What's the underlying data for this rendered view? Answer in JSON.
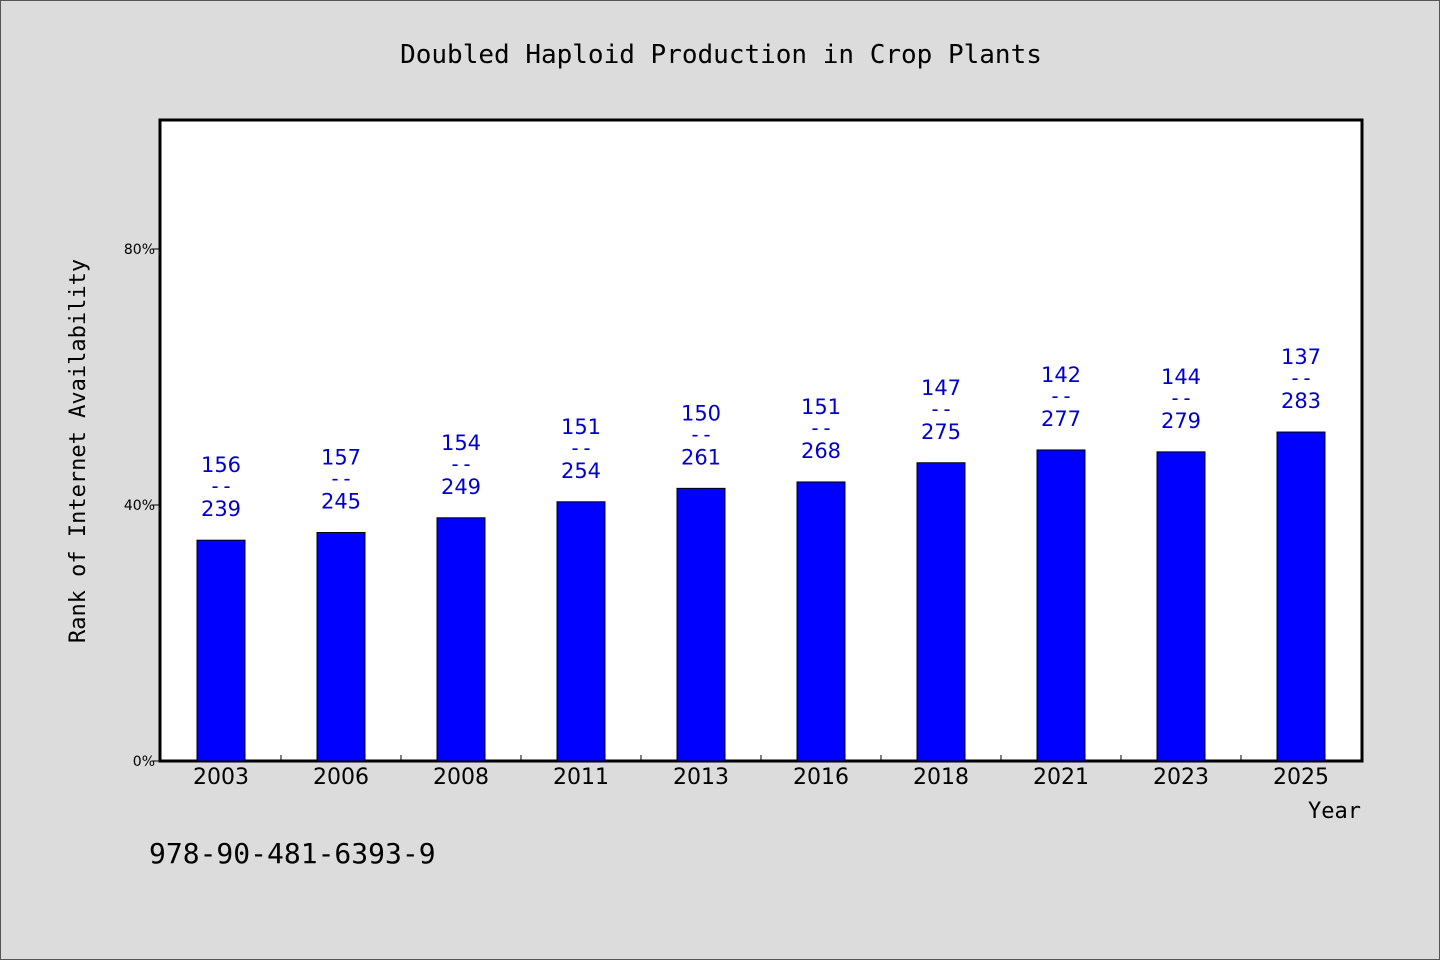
{
  "chart_data": {
    "type": "bar",
    "title": "Doubled Haploid Production in Crop Plants",
    "xlabel": "Year",
    "ylabel": "Rank of Internet Availability",
    "footnote": "978-90-481-6393-9",
    "categories": [
      "2003",
      "2006",
      "2008",
      "2011",
      "2013",
      "2016",
      "2018",
      "2021",
      "2023",
      "2025"
    ],
    "values": [
      34.5,
      35.7,
      38.0,
      40.5,
      42.6,
      43.6,
      46.6,
      48.6,
      48.3,
      51.4
    ],
    "labels_top": [
      "156",
      "157",
      "154",
      "151",
      "150",
      "151",
      "147",
      "142",
      "144",
      "137"
    ],
    "labels_sep": "--",
    "labels_bottom": [
      "239",
      "245",
      "249",
      "254",
      "261",
      "268",
      "275",
      "277",
      "279",
      "283"
    ],
    "yticks": [
      0,
      40,
      80
    ],
    "ytick_labels": [
      "0%",
      "40%",
      "80%"
    ],
    "ylim": [
      0,
      100
    ],
    "bar_color": "#0000ff",
    "label_color": "#0000cc",
    "grid": false
  }
}
